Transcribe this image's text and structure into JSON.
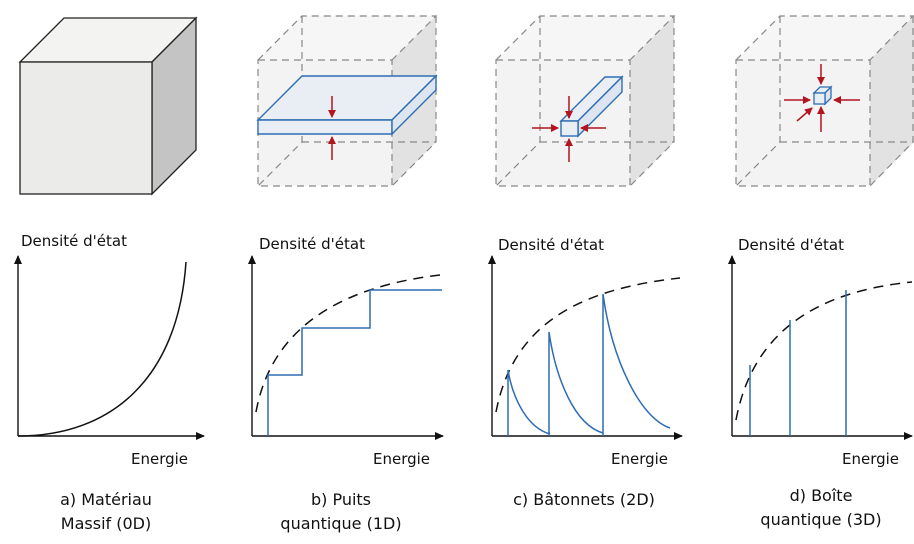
{
  "panels": [
    {
      "key": "a",
      "ylabel": "Densité d'état",
      "xlabel": "Energie",
      "caption_line1": "a) Matériau",
      "caption_line2": "Massif (0D)",
      "cube": "solid-cube-icon",
      "dos": "parabolic-curve"
    },
    {
      "key": "b",
      "ylabel": "Densité d'état",
      "xlabel": "Energie",
      "caption_line1": "b) Puits",
      "caption_line2": "quantique (1D)",
      "cube": "cube-with-slab-icon",
      "dos": "staircase"
    },
    {
      "key": "c",
      "ylabel": "Densité d'état",
      "xlabel": "Energie",
      "caption_line1": "c) Bâtonnets (2D)",
      "caption_line2": "",
      "cube": "cube-with-rod-icon",
      "dos": "sawtooth-decay"
    },
    {
      "key": "d",
      "ylabel": "Densité d'état",
      "xlabel": "Energie",
      "caption_line1": "d) Boîte",
      "caption_line2": "quantique (3D)",
      "cube": "cube-with-dot-icon",
      "dos": "delta-peaks"
    }
  ],
  "colors": {
    "line": "#111111",
    "blue": "#2e6db4",
    "arrow": "#b3151f",
    "cube_front": "#ebebea",
    "cube_top": "#f3f3f2",
    "cube_side": "#c4c4c4",
    "ghost_front": "#f3f3f3",
    "ghost_side": "#e2e2e2"
  }
}
